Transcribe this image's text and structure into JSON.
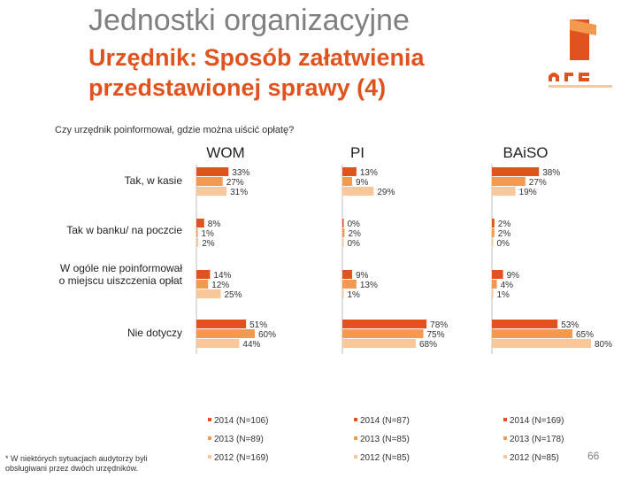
{
  "header": {
    "title": "Jednostki organizacyjne",
    "subtitle": "Urzędnik: Sposób załatwienia przedstawionej sprawy (4)",
    "question": "Czy urzędnik poinformował, gdzie można uiścić opłatę?"
  },
  "colors": {
    "s2014": "#e0531f",
    "s2013": "#f39a4f",
    "s2012": "#f9c89a",
    "title": "#7f7f7f",
    "subtitle": "#e0531f"
  },
  "logo": {
    "name": "arc-logo"
  },
  "footnote": "* W niektórych sytuacjach audytorzy byli obsługiwani przez dwóch urzędników.",
  "page_number": "66",
  "chart_data": {
    "type": "bar",
    "orientation": "horizontal",
    "categories": [
      "Tak, w kasie",
      "Tak w banku/ na poczcie",
      "W ogóle nie poinformował o miejscu uiszczenia opłat",
      "Nie dotyczy"
    ],
    "category_lines": [
      [
        "Tak, w kasie"
      ],
      [
        "Tak w banku/ na poczcie"
      ],
      [
        "W ogóle nie poinformował",
        "o miejscu uiszczenia opłat"
      ],
      [
        "Nie dotyczy"
      ]
    ],
    "panels": [
      {
        "title": "WOM",
        "series": [
          {
            "name": "2014 (N=106)",
            "values": [
              33,
              8,
              14,
              51
            ],
            "labels": [
              "33%",
              "8%",
              "14%",
              "51%"
            ]
          },
          {
            "name": "2013 (N=89)",
            "values": [
              27,
              1,
              12,
              60
            ],
            "labels": [
              "27%",
              "1%",
              "12%",
              "60%"
            ]
          },
          {
            "name": "2012 (N=169)",
            "values": [
              31,
              2,
              25,
              44
            ],
            "labels": [
              "31%",
              "2%",
              "25%",
              "44%"
            ]
          }
        ]
      },
      {
        "title": "PI",
        "series": [
          {
            "name": "2014 (N=87)",
            "values": [
              13,
              0,
              9,
              78
            ],
            "labels": [
              "13%",
              "0%",
              "9%",
              "78%"
            ]
          },
          {
            "name": "2013 (N=85)",
            "values": [
              9,
              2,
              13,
              75
            ],
            "labels": [
              "9%",
              "2%",
              "13%",
              "75%"
            ]
          },
          {
            "name": "2012 (N=85)",
            "values": [
              29,
              0,
              1,
              68
            ],
            "labels": [
              "29%",
              "0%",
              "1%",
              "68%"
            ]
          }
        ]
      },
      {
        "title": "BAiSO",
        "series": [
          {
            "name": "2014 (N=169)",
            "values": [
              38,
              2,
              9,
              53
            ],
            "labels": [
              "38%",
              "2%",
              "9%",
              "53%"
            ]
          },
          {
            "name": "2013 (N=178)",
            "values": [
              27,
              2,
              4,
              65
            ],
            "labels": [
              "27%",
              "2%",
              "4%",
              "65%"
            ]
          },
          {
            "name": "2012 (N=85)",
            "values": [
              19,
              0,
              1,
              80
            ],
            "labels": [
              "19%",
              "0%",
              "1%",
              "80%"
            ]
          }
        ]
      }
    ],
    "legend_placement": "bottom",
    "grid": false
  }
}
